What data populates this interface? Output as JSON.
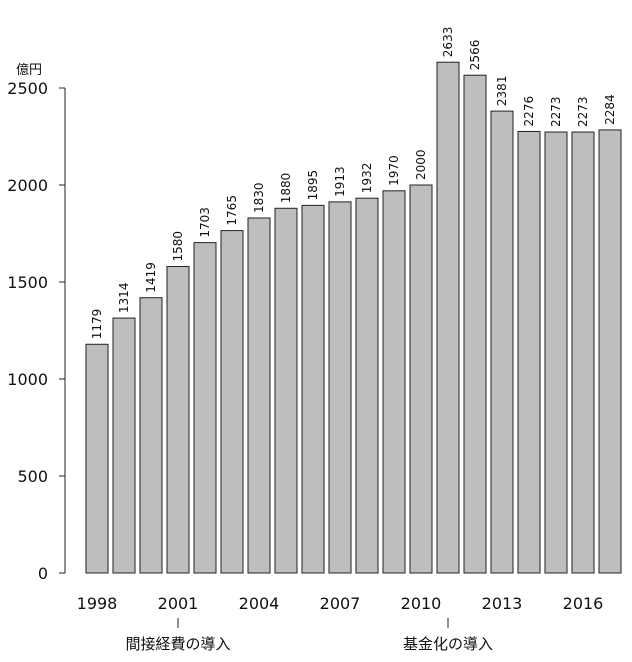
{
  "chart_data": {
    "type": "bar",
    "unit_label": "億円",
    "categories": [
      "1998",
      "1999",
      "2000",
      "2001",
      "2002",
      "2003",
      "2004",
      "2005",
      "2006",
      "2007",
      "2008",
      "2009",
      "2010",
      "2011",
      "2012",
      "2013",
      "2014",
      "2015",
      "2016",
      "2017"
    ],
    "values": [
      1179,
      1314,
      1419,
      1580,
      1703,
      1765,
      1830,
      1880,
      1895,
      1913,
      1932,
      1970,
      2000,
      2633,
      2566,
      2381,
      2276,
      2273,
      2273,
      2284
    ],
    "data_labels": [
      "1179",
      "1314",
      "1419",
      "1580",
      "1703",
      "1765",
      "1830",
      "1880",
      "1895",
      "1913",
      "1932",
      "1970",
      "2000",
      "2633",
      "2566",
      "2381",
      "2276",
      "2273",
      "2273",
      "2284"
    ],
    "x_tick_labels": [
      {
        "index": 0,
        "label": "1998"
      },
      {
        "index": 3,
        "label": "2001"
      },
      {
        "index": 6,
        "label": "2004"
      },
      {
        "index": 9,
        "label": "2007"
      },
      {
        "index": 12,
        "label": "2010"
      },
      {
        "index": 15,
        "label": "2013"
      },
      {
        "index": 18,
        "label": "2016"
      }
    ],
    "y_ticks": [
      {
        "value": 0,
        "label": "0"
      },
      {
        "value": 500,
        "label": "500"
      },
      {
        "value": 1000,
        "label": "1000"
      },
      {
        "value": 1500,
        "label": "1500"
      },
      {
        "value": 2000,
        "label": "2000"
      },
      {
        "value": 2500,
        "label": "2500"
      }
    ],
    "ylim": [
      0,
      2500
    ],
    "annotations": [
      {
        "index": 3,
        "text": "間接経費の導入"
      },
      {
        "index": 13,
        "text": "基金化の導入"
      }
    ],
    "colors": {
      "bar_fill": "#bebebe",
      "bar_stroke": "#222222"
    },
    "grid": false,
    "legend": "none"
  }
}
